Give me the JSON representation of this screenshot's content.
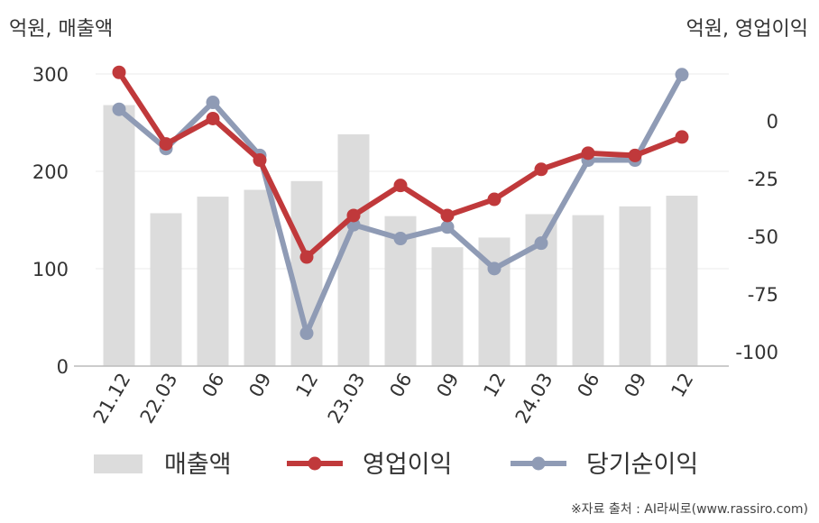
{
  "chart_data": {
    "type": "bar+line",
    "categories": [
      "21.12",
      "22.03",
      "06",
      "09",
      "12",
      "23.03",
      "06",
      "09",
      "12",
      "24.03",
      "06",
      "09",
      "12"
    ],
    "series": [
      {
        "name": "매출액",
        "type": "bar",
        "axis": "left",
        "color": "#dcdcdc",
        "values": [
          268,
          157,
          174,
          181,
          190,
          238,
          154,
          122,
          132,
          156,
          155,
          164,
          175
        ]
      },
      {
        "name": "영업이익",
        "type": "line",
        "axis": "right",
        "color": "#c0393b",
        "values": [
          21,
          -10,
          1,
          -17,
          -59,
          -41,
          -28,
          -41,
          -34,
          -21,
          -14,
          -15,
          -7
        ]
      },
      {
        "name": "당기순이익",
        "type": "line",
        "axis": "right",
        "color": "#8f9bb5",
        "values": [
          5,
          -12,
          8,
          -15,
          -92,
          -45,
          -51,
          -46,
          -64,
          -53,
          -17,
          -17,
          20
        ]
      }
    ],
    "left_axis": {
      "label": "억원, 매출액",
      "ticks": [
        0,
        100,
        200,
        300
      ],
      "range": [
        0,
        300
      ]
    },
    "right_axis": {
      "label": "억원, 영업이익",
      "ticks": [
        0,
        -25,
        -50,
        -75,
        -100
      ],
      "range": [
        -105,
        21
      ]
    },
    "grid": true,
    "legend_position": "bottom"
  },
  "source_note": "※자료 출처 : AI라씨로(www.rassiro.com)"
}
